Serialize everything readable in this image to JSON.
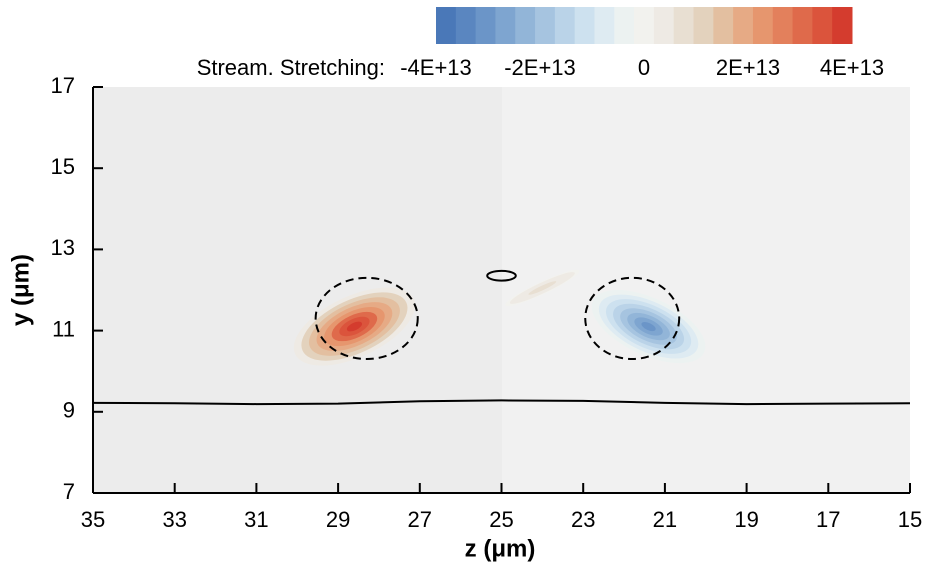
{
  "chart_data": {
    "type": "contour",
    "colorbar_label": "Stream. Stretching:",
    "clim": [
      -40000000000000,
      40000000000000
    ],
    "cticks": [
      {
        "value": -40000000000000,
        "label": "-4E+13"
      },
      {
        "value": -20000000000000,
        "label": "-2E+13"
      },
      0,
      {
        "value": 20000000000000,
        "label": "2E+13"
      },
      {
        "value": 40000000000000,
        "label": "4E+13"
      }
    ],
    "colors": [
      "#4a78b8",
      "#5a86c0",
      "#6b95c8",
      "#7ea5d0",
      "#92b5d8",
      "#a6c4e0",
      "#bad3e8",
      "#cde1ef",
      "#deebf2",
      "#ecf2f1",
      "#f2f2ee",
      "#eeeae4",
      "#e8dfd2",
      "#e3d2bd",
      "#e3bfa0",
      "#e6aa85",
      "#e6966e",
      "#e3805c",
      "#df6a4b",
      "#db543c",
      "#d43c2e"
    ],
    "xlabel": "z (μm)",
    "ylabel": "y (μm)",
    "xlim": [
      35,
      15
    ],
    "ylim": [
      7,
      17
    ],
    "xticks": [
      35,
      33,
      31,
      29,
      27,
      25,
      23,
      21,
      19,
      17,
      15
    ],
    "yticks": [
      7,
      9,
      11,
      13,
      15,
      17
    ],
    "features": [
      {
        "x": 28.6,
        "y": 11.1,
        "value": 40000000000000,
        "rx": 1.6,
        "ry": 0.75
      },
      {
        "x": 21.4,
        "y": 11.1,
        "value": -32000000000000,
        "rx": 1.5,
        "ry": 0.7
      },
      {
        "x": 24.0,
        "y": 12.05,
        "value": 8000000000000,
        "rx": 1.0,
        "ry": 0.15
      }
    ],
    "contour_lines": [
      {
        "x": 28.3,
        "y": 11.3,
        "rx": 1.25,
        "ry": 1.0,
        "dashed": true
      },
      {
        "x": 21.8,
        "y": 11.3,
        "rx": 1.15,
        "ry": 1.0,
        "dashed": true
      },
      {
        "x": 25.0,
        "y": 12.35,
        "rx": 0.35,
        "ry": 0.12,
        "dashed": false
      }
    ],
    "wall": {
      "x": [
        35,
        33,
        31,
        29,
        27,
        25,
        23,
        21,
        19,
        17,
        15
      ],
      "y": [
        9.22,
        9.21,
        9.19,
        9.2,
        9.26,
        9.28,
        9.27,
        9.22,
        9.19,
        9.2,
        9.21
      ]
    }
  }
}
